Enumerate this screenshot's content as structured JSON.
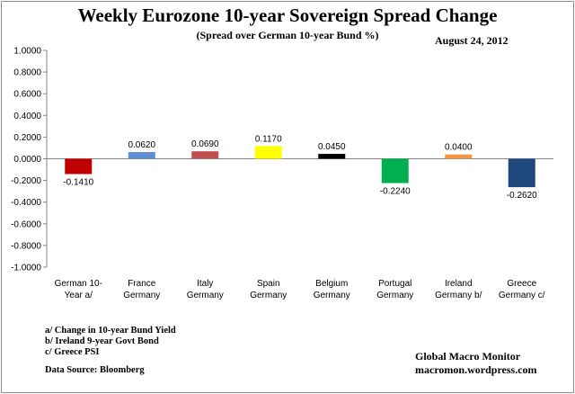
{
  "chart_data": {
    "type": "bar",
    "title": "Weekly Eurozone 10-year Sovereign Spread Change",
    "subtitle": "(Spread over German 10-year Bund  %)",
    "date": "August 24, 2012",
    "categories": [
      [
        "German 10-",
        "Year a/"
      ],
      [
        "France",
        "Germany"
      ],
      [
        "Italy",
        "Germany"
      ],
      [
        "Spain",
        "Germany"
      ],
      [
        "Belgium",
        "Germany"
      ],
      [
        "Portugal",
        "Germany"
      ],
      [
        "Ireland",
        "Germany b/"
      ],
      [
        "Greece",
        "Germany c/"
      ]
    ],
    "values": [
      -0.141,
      0.062,
      0.069,
      0.117,
      0.045,
      -0.224,
      0.04,
      -0.262
    ],
    "value_labels": [
      "-0.1410",
      "0.0620",
      "0.0690",
      "0.1170",
      "0.0450",
      "-0.2240",
      "0.0400",
      "-0.2620"
    ],
    "colors": [
      "#c00000",
      "#5b8fd2",
      "#c0504d",
      "#ffff00",
      "#000000",
      "#00b050",
      "#f79646",
      "#1f497d"
    ],
    "ylim": [
      -1,
      1
    ],
    "yticks": [
      1,
      0.8,
      0.6,
      0.4,
      0.2,
      0,
      -0.2,
      -0.4,
      -0.6,
      -0.8,
      -1
    ],
    "ytick_labels": [
      "1.0000",
      "0.8000",
      "0.6000",
      "0.4000",
      "0.2000",
      "0.0000",
      "-0.2000",
      "-0.4000",
      "-0.6000",
      "-0.8000",
      "-1.0000"
    ],
    "grid": false,
    "xlabel": "",
    "ylabel": ""
  },
  "notes": {
    "a": "a/ Change in 10-year Bund Yield",
    "b": "b/ Ireland 9-year Govt Bond",
    "c": "c/ Greece PSI",
    "source": "Data Source:  Bloomberg"
  },
  "branding": {
    "name": "Global Macro Monitor",
    "site": "macromon.wordpress.com"
  }
}
